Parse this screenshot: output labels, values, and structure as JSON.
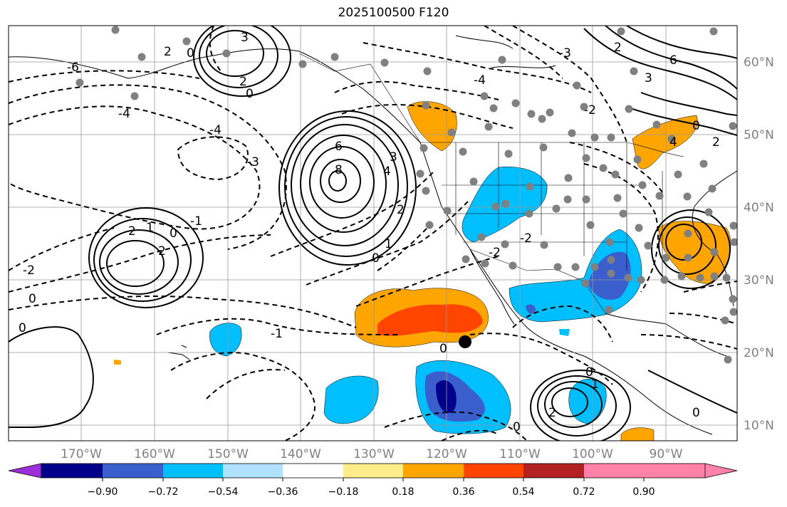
{
  "title": "2025100500 F120",
  "lon_labels": [
    "170°W",
    "160°W",
    "150°W",
    "140°W",
    "130°W",
    "120°W",
    "110°W",
    "100°W",
    "90°W"
  ],
  "lat_labels": [
    "60°N",
    "50°N",
    "40°N",
    "30°N",
    "20°N",
    "10°N"
  ],
  "colorbar": {
    "ticks": [
      "−0.90",
      "−0.72",
      "−0.54",
      "−0.36",
      "−0.18",
      "0.18",
      "0.36",
      "0.54",
      "0.72",
      "0.90"
    ],
    "colors": [
      "#9b30d9",
      "#00008b",
      "#3a5fcd",
      "#00bfff",
      "#b0e2ff",
      "#ffffff",
      "#ffec8b",
      "#ffa500",
      "#ff4500",
      "#b22222",
      "#ff82ab"
    ]
  },
  "contour_labels": [
    "6",
    "4",
    "3",
    "2",
    "1",
    "0",
    "8",
    "-6",
    "-4",
    "-3",
    "-2",
    "-1",
    "0"
  ]
}
